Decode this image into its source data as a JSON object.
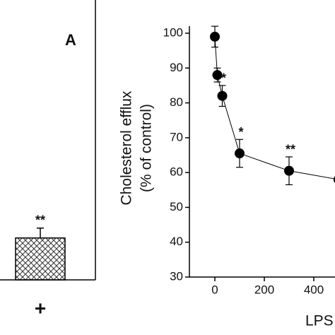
{
  "chart_data": [
    {
      "type": "bar",
      "panel_label": "A",
      "categories": [
        "+"
      ],
      "values": [
        17
      ],
      "errors": [
        4
      ],
      "annotations": [
        "**"
      ],
      "ylim": [
        0,
        100
      ],
      "hatch": true,
      "color": "#444"
    },
    {
      "type": "line",
      "ylabel": [
        "Cholesterol efflux",
        "(% of control)"
      ],
      "xlabel": "LPS",
      "x": [
        0,
        10,
        30,
        100,
        300,
        500
      ],
      "values": [
        99,
        88,
        82,
        65.5,
        60.5,
        58
      ],
      "errors": [
        3,
        2,
        3,
        4,
        4,
        null
      ],
      "annotations": [
        null,
        null,
        "*",
        "*",
        "**",
        null
      ],
      "xlim": [
        -100,
        500
      ],
      "ylim": [
        30,
        100
      ],
      "xticks": [
        0,
        200,
        400
      ],
      "yticks": [
        30,
        40,
        50,
        60,
        70,
        80,
        90,
        100
      ],
      "color": "#000"
    }
  ]
}
